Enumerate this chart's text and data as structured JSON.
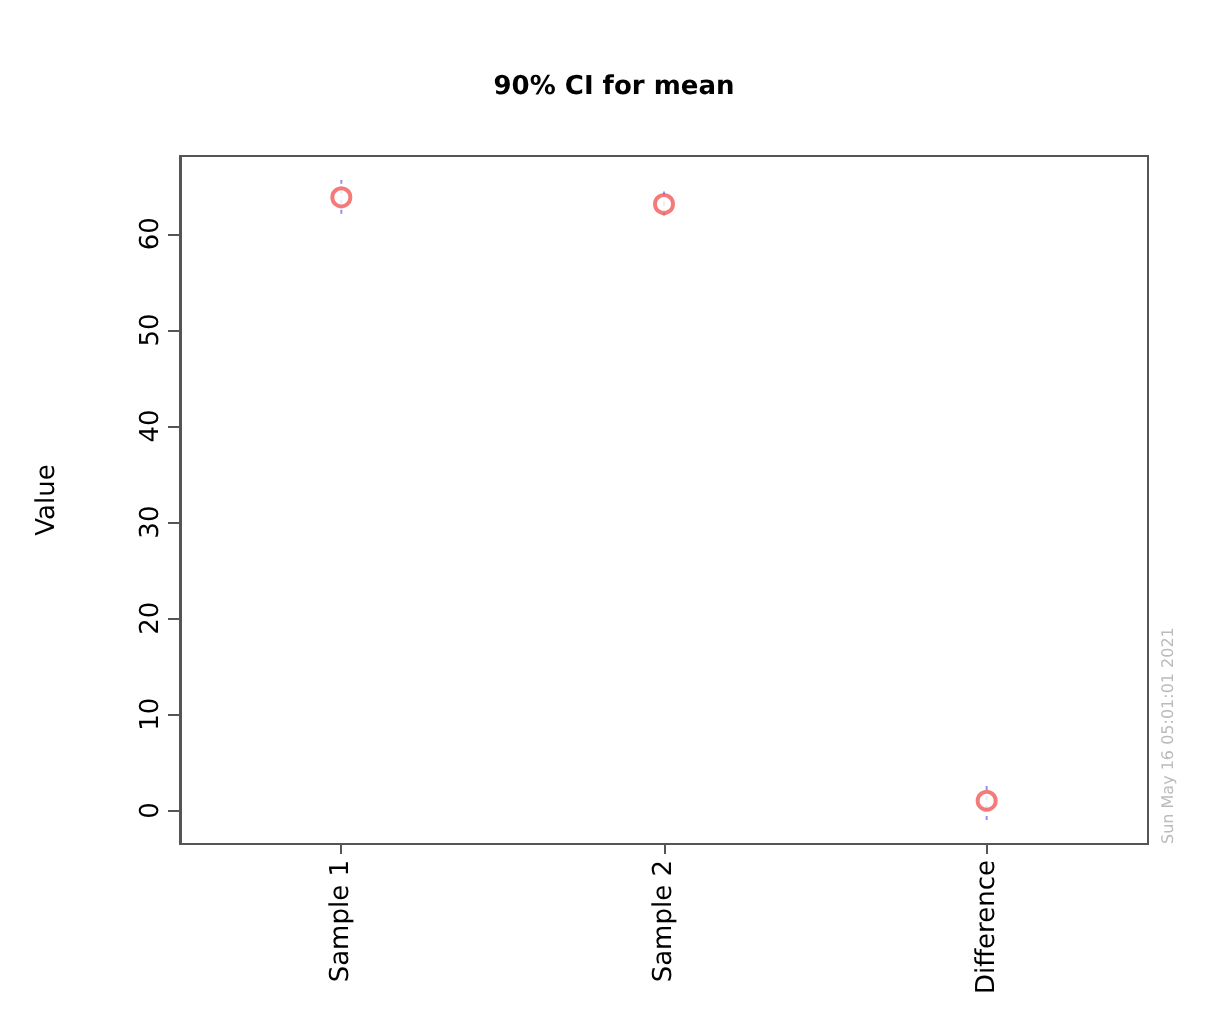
{
  "chart_data": {
    "type": "scatter",
    "title": "90% CI for mean",
    "ylabel": "Value",
    "categories": [
      "Sample 1",
      "Sample 2",
      "Difference"
    ],
    "series": [
      {
        "color": "#f25a5a",
        "values": [
          63.8,
          63.1,
          1.0
        ],
        "errors": [
          [
            62.1,
            65.6
          ],
          [
            61.9,
            64.4
          ],
          [
            -1.0,
            2.7
          ]
        ]
      }
    ],
    "marker": "circle",
    "ylim": [
      -3.5,
      68.1
    ],
    "yticks": [
      0,
      10,
      20,
      30,
      40,
      50,
      60
    ],
    "grid": false,
    "annotations": [
      "Sun May 16 05:01:01 2021"
    ]
  }
}
